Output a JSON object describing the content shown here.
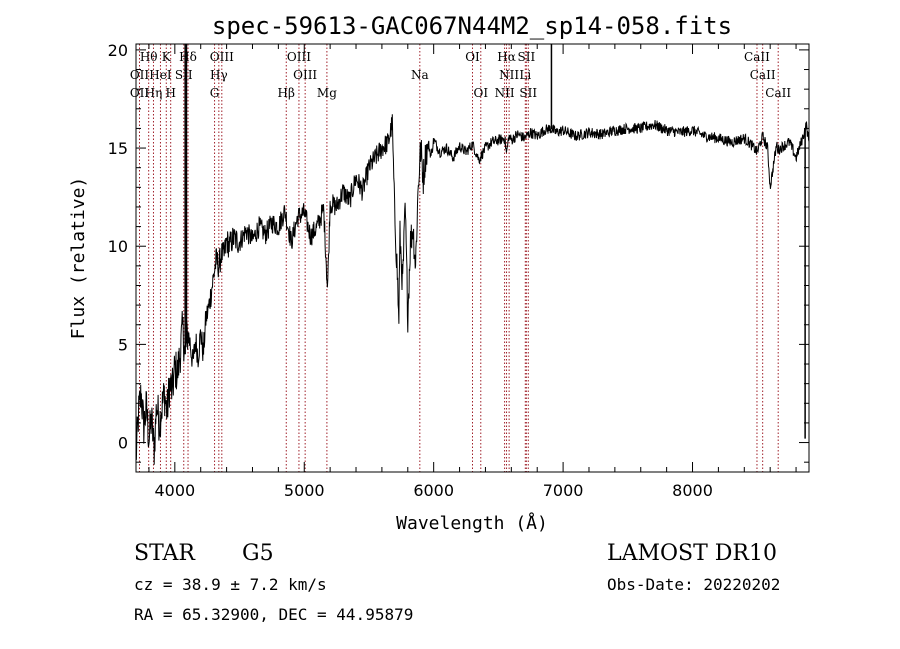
{
  "chart_data": {
    "type": "line",
    "title": "spec-59613-GAC067N44M2_sp14-058.fits",
    "xlabel": "Wavelength (Å)",
    "ylabel": "Flux (relative)",
    "xlim": [
      3700,
      8900
    ],
    "ylim": [
      -1.5,
      20.3
    ],
    "xticks": [
      4000,
      5000,
      6000,
      7000,
      8000
    ],
    "yticks": [
      0,
      5,
      10,
      15,
      20
    ],
    "grid": false,
    "legend": "none",
    "series": [
      {
        "x": [
          3700,
          3720,
          3740,
          3760,
          3780,
          3800,
          3820,
          3840,
          3860,
          3880,
          3900,
          3920,
          3940,
          3960,
          3980,
          4000,
          4020,
          4040,
          4060,
          4080,
          4100,
          4120,
          4140,
          4160,
          4180,
          4200,
          4220,
          4240,
          4260,
          4280,
          4300,
          4320,
          4340,
          4360,
          4380,
          4400,
          4420,
          4450,
          4500,
          4550,
          4600,
          4650,
          4700,
          4750,
          4800,
          4850,
          4900,
          4950,
          5000,
          5050,
          5100,
          5150,
          5180,
          5200,
          5250,
          5300,
          5350,
          5400,
          5450,
          5500,
          5550,
          5600,
          5650,
          5680,
          5700,
          5720,
          5730,
          5740,
          5760,
          5780,
          5800,
          5820,
          5840,
          5860,
          5880,
          5900,
          5920,
          5940,
          5960,
          5980,
          6000,
          6050,
          6100,
          6150,
          6200,
          6250,
          6300,
          6350,
          6400,
          6450,
          6500,
          6550,
          6563,
          6580,
          6600,
          6650,
          6700,
          6750,
          6800,
          6850,
          6900,
          6950,
          7000,
          7100,
          7200,
          7300,
          7400,
          7500,
          7600,
          7700,
          7800,
          7900,
          8000,
          8100,
          8200,
          8300,
          8400,
          8450,
          8500,
          8542,
          8580,
          8600,
          8650,
          8662,
          8700,
          8750,
          8800,
          8850,
          8880,
          8900
        ],
        "y": [
          -0.8,
          1.5,
          2.5,
          0.8,
          1.8,
          0.2,
          1.2,
          -0.4,
          2.0,
          1.0,
          1.8,
          2.5,
          1.5,
          3.0,
          2.6,
          3.8,
          3.5,
          4.5,
          5.8,
          4.5,
          5.6,
          5.0,
          4.0,
          5.2,
          4.4,
          5.6,
          4.5,
          6.3,
          6.8,
          7.6,
          8.5,
          9.3,
          9.0,
          9.6,
          9.5,
          10.3,
          10.0,
          10.4,
          10.2,
          10.8,
          10.3,
          11.0,
          10.6,
          11.2,
          11.0,
          11.8,
          10.2,
          11.5,
          11.7,
          10.5,
          11.0,
          11.9,
          7.8,
          12.2,
          12.0,
          12.8,
          12.3,
          13.5,
          12.8,
          14.0,
          14.5,
          15.0,
          15.3,
          16.3,
          11.5,
          8.5,
          6.0,
          10.5,
          8.0,
          12.0,
          6.5,
          10.2,
          11.0,
          9.0,
          13.0,
          15.0,
          13.5,
          14.8,
          15.2,
          14.6,
          15.4,
          14.8,
          15.0,
          14.5,
          15.1,
          14.8,
          15.2,
          14.4,
          15.0,
          15.3,
          15.4,
          15.5,
          14.7,
          15.6,
          15.4,
          15.7,
          15.5,
          15.8,
          15.6,
          15.9,
          16.0,
          15.8,
          15.9,
          15.6,
          15.8,
          15.7,
          15.9,
          16.0,
          16.0,
          16.2,
          15.9,
          15.8,
          15.9,
          15.6,
          15.5,
          15.3,
          15.5,
          15.2,
          14.8,
          15.6,
          15.0,
          13.0,
          15.2,
          14.9,
          15.1,
          15.3,
          14.5,
          15.5,
          16.2,
          15.2
        ],
        "spikes": [
          {
            "x": 4080,
            "y": 20.3
          },
          {
            "x": 4090,
            "y": 20.3
          },
          {
            "x": 6910,
            "y": 20.3
          },
          {
            "x": 8870,
            "y": 0.2
          }
        ]
      }
    ],
    "lines": [
      {
        "label": "Hθ",
        "wavelength": 3798,
        "row": 1
      },
      {
        "label": "OII",
        "wavelength": 3727,
        "row": 2
      },
      {
        "label": "OII",
        "wavelength": 3727,
        "row": 3
      },
      {
        "label": "HeI",
        "wavelength": 3889,
        "row": 2
      },
      {
        "label": "Hη",
        "wavelength": 3835,
        "row": 3
      },
      {
        "label": "K",
        "wavelength": 3934,
        "row": 1
      },
      {
        "label": "SII",
        "wavelength": 4069,
        "row": 2
      },
      {
        "label": "H",
        "wavelength": 3968,
        "row": 3
      },
      {
        "label": "Hδ",
        "wavelength": 4102,
        "row": 1
      },
      {
        "label": "OIII",
        "wavelength": 4363,
        "row": 1
      },
      {
        "label": "Hγ",
        "wavelength": 4340,
        "row": 2
      },
      {
        "label": "G",
        "wavelength": 4307,
        "row": 3
      },
      {
        "label": "OIII",
        "wavelength": 4959,
        "row": 1
      },
      {
        "label": "OIII",
        "wavelength": 5007,
        "row": 2
      },
      {
        "label": "Hβ",
        "wavelength": 4861,
        "row": 3
      },
      {
        "label": "Mg",
        "wavelength": 5175,
        "row": 3
      },
      {
        "label": "Na",
        "wavelength": 5893,
        "row": 2
      },
      {
        "label": "OI",
        "wavelength": 6300,
        "row": 1
      },
      {
        "label": "OI",
        "wavelength": 6364,
        "row": 3
      },
      {
        "label": "Hα",
        "wavelength": 6563,
        "row": 1
      },
      {
        "label": "SII",
        "wavelength": 6716,
        "row": 1
      },
      {
        "label": "NII",
        "wavelength": 6583,
        "row": 2
      },
      {
        "label": "Li",
        "wavelength": 6708,
        "row": 2
      },
      {
        "label": "NII",
        "wavelength": 6548,
        "row": 3
      },
      {
        "label": "SII",
        "wavelength": 6731,
        "row": 3
      },
      {
        "label": "CaII",
        "wavelength": 8498,
        "row": 1
      },
      {
        "label": "CaII",
        "wavelength": 8542,
        "row": 2
      },
      {
        "label": "CaII",
        "wavelength": 8662,
        "row": 3
      }
    ]
  },
  "info": {
    "object_class": "STAR",
    "subclass": "G5",
    "survey": "LAMOST DR10",
    "cz": "cz = 38.9 ± 7.2 km/s",
    "obs_date": "Obs-Date: 20220202",
    "coords": "RA =  65.32900, DEC =  44.95879"
  }
}
